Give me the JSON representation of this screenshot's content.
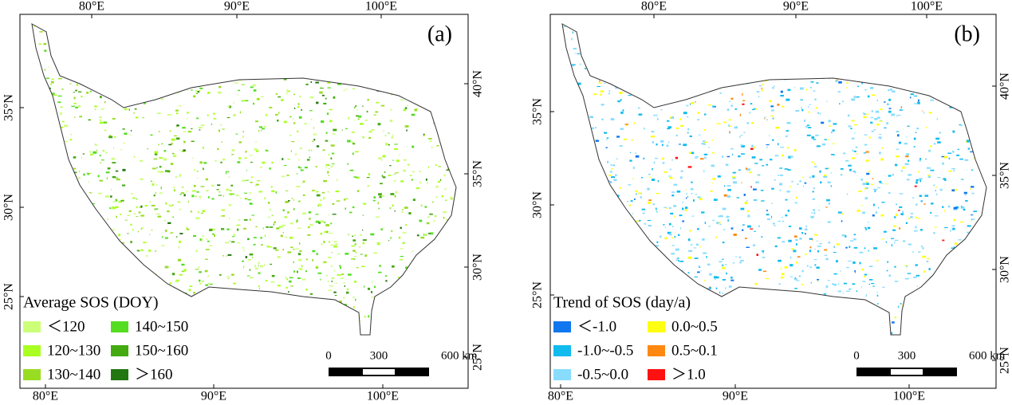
{
  "panels": [
    {
      "label": "(a)",
      "top_ticks": [
        "80°E",
        "90°E",
        "100°E"
      ],
      "bottom_ticks": [
        "80°E",
        "90°E",
        "100°E"
      ],
      "left_ticks": [
        "35°N",
        "30°N",
        "25°N"
      ],
      "right_ticks": [
        "40°N",
        "35°N",
        "30°N",
        "25°N"
      ],
      "legend": {
        "title": "Average SOS (DOY)",
        "items": [
          {
            "label": "＜120",
            "color": "#ccff77"
          },
          {
            "label": "120~130",
            "color": "#aaff22"
          },
          {
            "label": "130~140",
            "color": "#99dd22"
          },
          {
            "label": "140~150",
            "color": "#55dd22"
          },
          {
            "label": "150~160",
            "color": "#44aa11"
          },
          {
            "label": "＞160",
            "color": "#227711"
          }
        ]
      },
      "scale": [
        "0",
        "300",
        "600 km"
      ]
    },
    {
      "label": "(b)",
      "top_ticks": [
        "80°E",
        "90°E",
        "100°E"
      ],
      "bottom_ticks": [
        "80°E",
        "90°E",
        "100°E"
      ],
      "left_ticks": [
        "35°N",
        "30°N",
        "25°N"
      ],
      "right_ticks": [
        "40°N",
        "35°N",
        "30°N",
        "25°N"
      ],
      "legend": {
        "title": "Trend of SOS (day/a)",
        "items": [
          {
            "label": "＜-1.0",
            "color": "#1177ee"
          },
          {
            "label": "-1.0~-0.5",
            "color": "#11bbee"
          },
          {
            "label": "-0.5~0.0",
            "color": "#88ddff"
          },
          {
            "label": "0.0~0.5",
            "color": "#ffff11"
          },
          {
            "label": "0.5~0.1",
            "color": "#ff8811"
          },
          {
            "label": "＞1.0",
            "color": "#ff1111"
          }
        ]
      },
      "scale": [
        "0",
        "300",
        "600 km"
      ]
    }
  ]
}
